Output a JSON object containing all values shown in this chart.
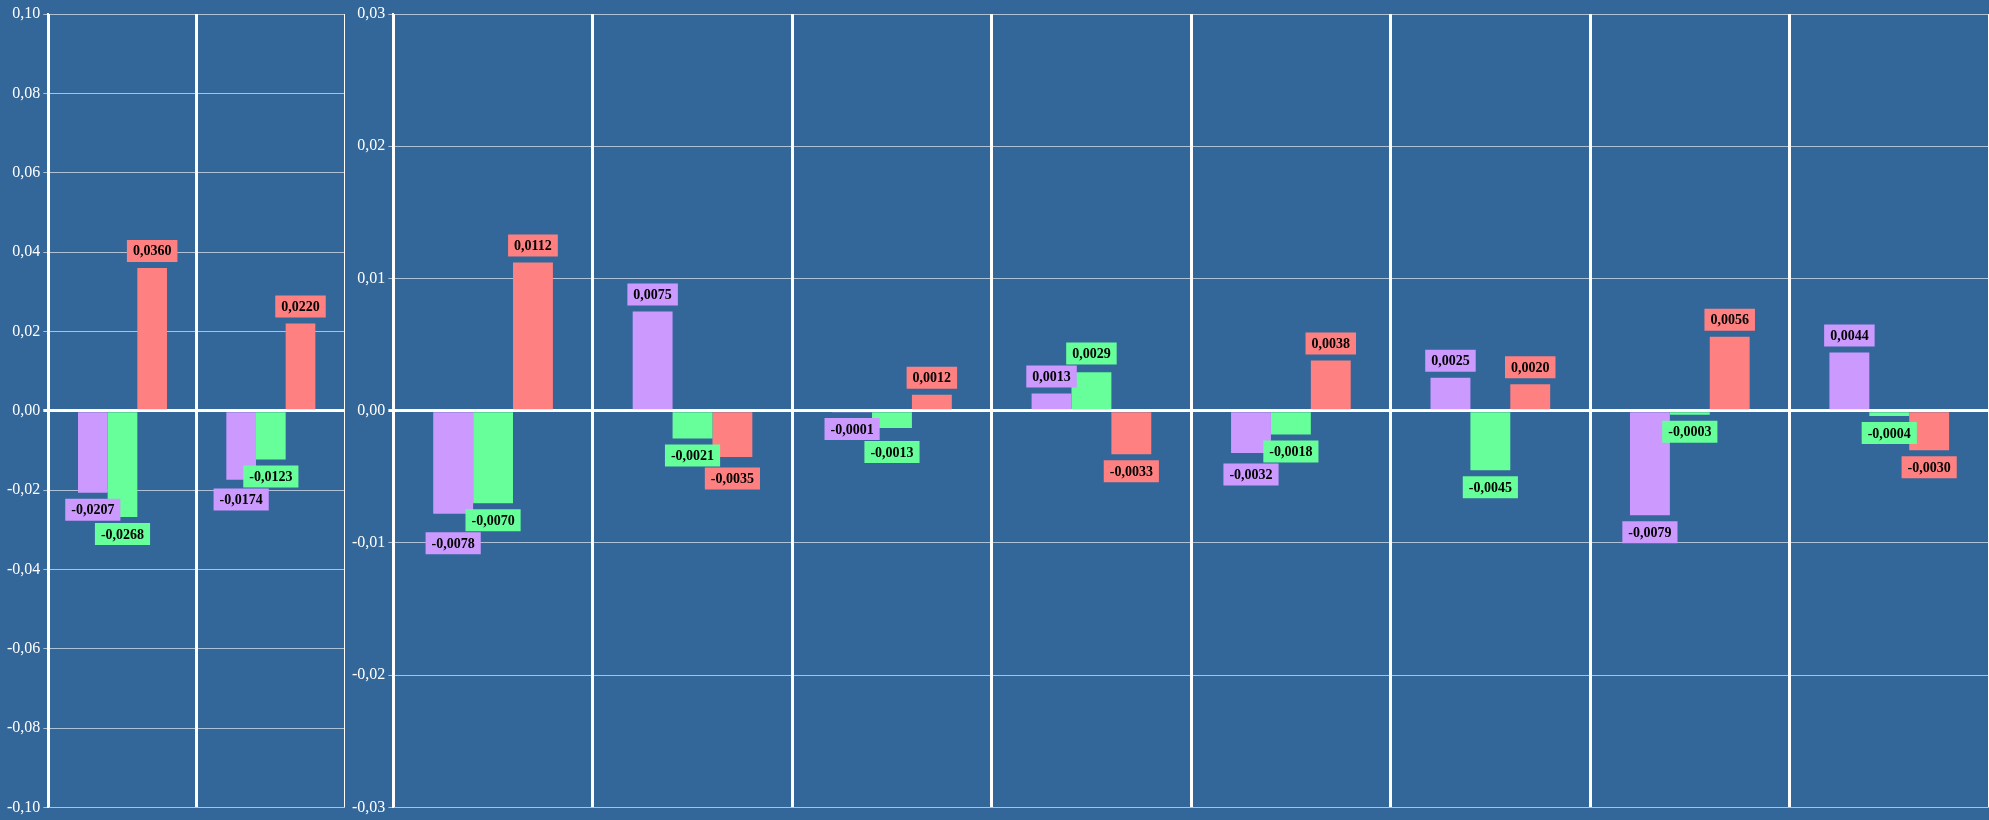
{
  "chart_data": [
    {
      "type": "bar",
      "categories": [
        null,
        null
      ],
      "ylim": [
        -0.1,
        0.1
      ],
      "yticks": [
        {
          "value": -0.1,
          "label": "-0,10"
        },
        {
          "value": -0.08,
          "label": "-0,08"
        },
        {
          "value": -0.06,
          "label": "-0,06"
        },
        {
          "value": -0.04,
          "label": "-0,04"
        },
        {
          "value": -0.02,
          "label": "-0,02"
        },
        {
          "value": 0,
          "label": "0,00"
        },
        {
          "value": 0.02,
          "label": "0,02"
        },
        {
          "value": 0.04,
          "label": "0,04"
        },
        {
          "value": 0.06,
          "label": "0,06"
        },
        {
          "value": 0.08,
          "label": "0,08"
        },
        {
          "value": 0.1,
          "label": "0,10"
        }
      ],
      "grid": true,
      "legend": false,
      "tick_labels": "y",
      "series": [
        {
          "color": "#cc99ff",
          "values": [
            -0.0207,
            -0.0174
          ],
          "value_labels": [
            "-0,0207",
            "-0,0174"
          ]
        },
        {
          "color": "#66ff99",
          "values": [
            -0.0268,
            -0.0123
          ],
          "value_labels": [
            "-0,0268",
            "-0,0123"
          ]
        },
        {
          "color": "#ff8080",
          "values": [
            0.036,
            0.022
          ],
          "value_labels": [
            "0,0360",
            "0,0220"
          ]
        }
      ]
    },
    {
      "type": "bar",
      "categories": [
        null,
        null,
        null,
        null,
        null,
        null,
        null,
        null
      ],
      "ylim": [
        -0.03,
        0.03
      ],
      "yticks": [
        {
          "value": -0.03,
          "label": "-0,03"
        },
        {
          "value": -0.02,
          "label": "-0,02"
        },
        {
          "value": -0.01,
          "label": "-0,01"
        },
        {
          "value": 0,
          "label": "0,00"
        },
        {
          "value": 0.01,
          "label": "0,01"
        },
        {
          "value": 0.02,
          "label": "0,02"
        },
        {
          "value": 0.03,
          "label": "0,03"
        }
      ],
      "grid": true,
      "legend": false,
      "tick_labels": "y",
      "series": [
        {
          "color": "#cc99ff",
          "values": [
            -0.0078,
            0.0075,
            -0.0001,
            0.0013,
            -0.0032,
            0.0025,
            -0.0079,
            0.0044
          ],
          "value_labels": [
            "-0,0078",
            "0,0075",
            "-0,0001",
            "0,0013",
            "-0,0032",
            "0,0025",
            "-0,0079",
            "0,0044"
          ]
        },
        {
          "color": "#66ff99",
          "values": [
            -0.007,
            -0.0021,
            -0.0013,
            0.0029,
            -0.0018,
            -0.0045,
            -0.0003,
            -0.0004
          ],
          "value_labels": [
            "-0,0070",
            "-0,0021",
            "-0,0013",
            "0,0029",
            "-0,0018",
            "-0,0045",
            "-0,0003",
            "-0,0004"
          ]
        },
        {
          "color": "#ff8080",
          "values": [
            0.0112,
            -0.0035,
            0.0012,
            -0.0033,
            0.0038,
            0.002,
            0.0056,
            -0.003
          ],
          "value_labels": [
            "0,0112",
            "-0,0035",
            "0,0012",
            "-0,0033",
            "0,0038",
            "0,0020",
            "0,0056",
            "-0,0030"
          ]
        }
      ]
    }
  ]
}
